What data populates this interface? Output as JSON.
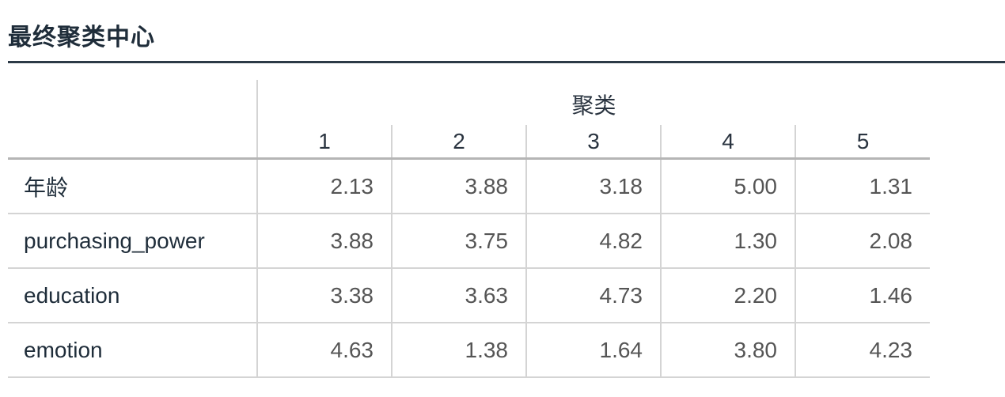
{
  "title": "最终聚类中心",
  "table": {
    "group_header": "聚类",
    "cluster_labels": [
      "1",
      "2",
      "3",
      "4",
      "5"
    ],
    "rows": [
      {
        "label": "年龄",
        "values": [
          "2.13",
          "3.88",
          "3.18",
          "5.00",
          "1.31"
        ]
      },
      {
        "label": "purchasing_power",
        "values": [
          "3.88",
          "3.75",
          "4.82",
          "1.30",
          "2.08"
        ]
      },
      {
        "label": "education",
        "values": [
          "3.38",
          "3.63",
          "4.73",
          "2.20",
          "1.46"
        ]
      },
      {
        "label": "emotion",
        "values": [
          "4.63",
          "1.38",
          "1.64",
          "3.80",
          "4.23"
        ]
      }
    ]
  }
}
